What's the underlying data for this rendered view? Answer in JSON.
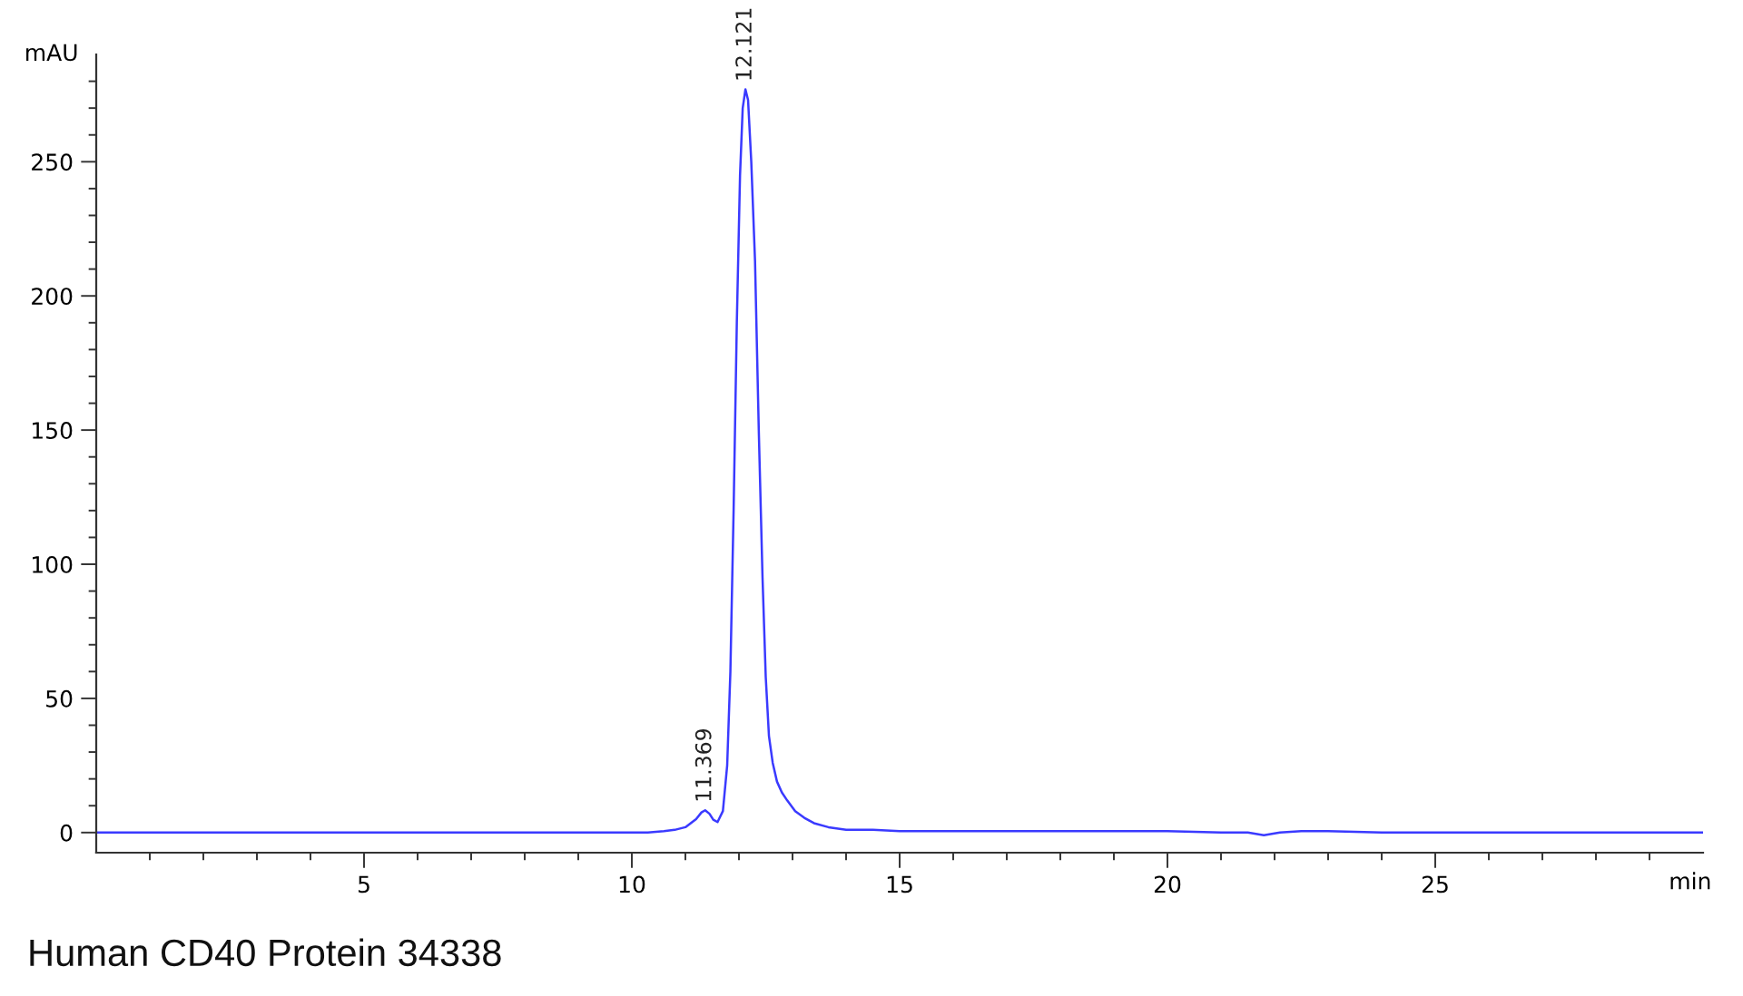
{
  "chart_data": {
    "type": "line",
    "xlabel": "min",
    "ylabel": "mAU",
    "line_style": "solid",
    "x": [
      0,
      1,
      2,
      3,
      4,
      5,
      6,
      7,
      8,
      9,
      10,
      10.3,
      10.6,
      10.8,
      11.0,
      11.2,
      11.3,
      11.369,
      11.45,
      11.52,
      11.6,
      11.7,
      11.78,
      11.84,
      11.9,
      11.96,
      12.02,
      12.07,
      12.121,
      12.17,
      12.23,
      12.3,
      12.37,
      12.44,
      12.5,
      12.56,
      12.63,
      12.71,
      12.8,
      12.9,
      13.05,
      13.22,
      13.4,
      13.67,
      14.0,
      14.5,
      15,
      16,
      17,
      18,
      19,
      20,
      21,
      21.5,
      21.8,
      22.1,
      22.5,
      23,
      24,
      25,
      26,
      27,
      28,
      29,
      30
    ],
    "series": [
      {
        "color": "#3a3aff",
        "values": [
          0,
          0,
          0,
          0,
          0,
          0,
          0,
          0,
          0,
          0,
          0,
          0,
          0.5,
          1,
          2,
          5,
          7.5,
          8.3,
          7,
          4.8,
          3.9,
          8,
          25,
          60,
          120,
          190,
          245,
          270,
          277,
          273,
          250,
          213,
          150,
          95,
          58,
          36,
          26,
          19,
          15,
          12,
          8,
          5.5,
          3.5,
          2,
          1,
          1,
          0.5,
          0.5,
          0.5,
          0.5,
          0.5,
          0.5,
          0,
          0,
          -1,
          0,
          0.5,
          0.5,
          0,
          0,
          0,
          0,
          0,
          0,
          0
        ]
      }
    ],
    "xlim": [
      0,
      30
    ],
    "ylim": [
      -7.5,
      290
    ],
    "xticks": [
      {
        "value": 1,
        "label": null
      },
      {
        "value": 2,
        "label": null
      },
      {
        "value": 3,
        "label": null
      },
      {
        "value": 4,
        "label": null
      },
      5,
      {
        "value": 6,
        "label": null
      },
      {
        "value": 7,
        "label": null
      },
      {
        "value": 8,
        "label": null
      },
      {
        "value": 9,
        "label": null
      },
      10,
      {
        "value": 11,
        "label": null
      },
      {
        "value": 12,
        "label": null
      },
      {
        "value": 13,
        "label": null
      },
      {
        "value": 14,
        "label": null
      },
      15,
      {
        "value": 16,
        "label": null
      },
      {
        "value": 17,
        "label": null
      },
      {
        "value": 18,
        "label": null
      },
      {
        "value": 19,
        "label": null
      },
      20,
      {
        "value": 21,
        "label": null
      },
      {
        "value": 22,
        "label": null
      },
      {
        "value": 23,
        "label": null
      },
      {
        "value": 24,
        "label": null
      },
      25,
      {
        "value": 26,
        "label": null
      },
      {
        "value": 27,
        "label": null
      },
      {
        "value": 28,
        "label": null
      },
      {
        "value": 29,
        "label": null
      }
    ],
    "yticks": [
      0,
      {
        "value": 10,
        "label": null
      },
      {
        "value": 20,
        "label": null
      },
      {
        "value": 30,
        "label": null
      },
      {
        "value": 40,
        "label": null
      },
      50,
      {
        "value": 60,
        "label": null
      },
      {
        "value": 70,
        "label": null
      },
      {
        "value": 80,
        "label": null
      },
      {
        "value": 90,
        "label": null
      },
      100,
      {
        "value": 110,
        "label": null
      },
      {
        "value": 120,
        "label": null
      },
      {
        "value": 130,
        "label": null
      },
      {
        "value": 140,
        "label": null
      },
      150,
      {
        "value": 160,
        "label": null
      },
      {
        "value": 170,
        "label": null
      },
      {
        "value": 180,
        "label": null
      },
      {
        "value": 190,
        "label": null
      },
      200,
      {
        "value": 210,
        "label": null
      },
      {
        "value": 220,
        "label": null
      },
      {
        "value": 230,
        "label": null
      },
      {
        "value": 240,
        "label": null
      },
      250,
      {
        "value": 260,
        "label": null
      },
      {
        "value": 270,
        "label": null
      },
      {
        "value": 280,
        "label": null
      }
    ],
    "annotations": [
      {
        "text": "11.369",
        "x": 11.369,
        "y": 8.3
      },
      {
        "text": "12.121",
        "x": 12.121,
        "y": 277
      },
      "Human CD40 Protein 34338"
    ]
  }
}
